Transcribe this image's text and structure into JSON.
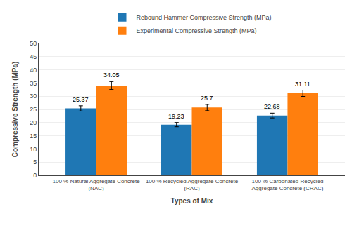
{
  "chart_data": {
    "type": "bar",
    "categories": [
      "100 % Natural Aggregate Concrete\n(NAC)",
      "100 % Recycled Aggregate Concrete\n(RAC)",
      "100 % Carbonated Recycled\nAggregate Concrete (CRAC)"
    ],
    "xlabel": "Types of Mix",
    "ylabel": "Compressive Strength (MPa)",
    "series": [
      {
        "name": "Rebound Hammer Compressive Strength (MPa)",
        "values": [
          25.37,
          19.23,
          22.68
        ],
        "errors": [
          1.0,
          0.8,
          0.9
        ]
      },
      {
        "name": "Experimental Compressive Strength (MPa)",
        "values": [
          34.05,
          25.7,
          31.11
        ],
        "errors": [
          1.5,
          1.2,
          1.2
        ]
      }
    ],
    "ylim": [
      0,
      50
    ],
    "yticks": [
      0,
      5,
      10,
      15,
      20,
      25,
      30,
      35,
      40,
      45,
      50
    ],
    "grid": true,
    "legend": "top",
    "data_labels": true
  }
}
